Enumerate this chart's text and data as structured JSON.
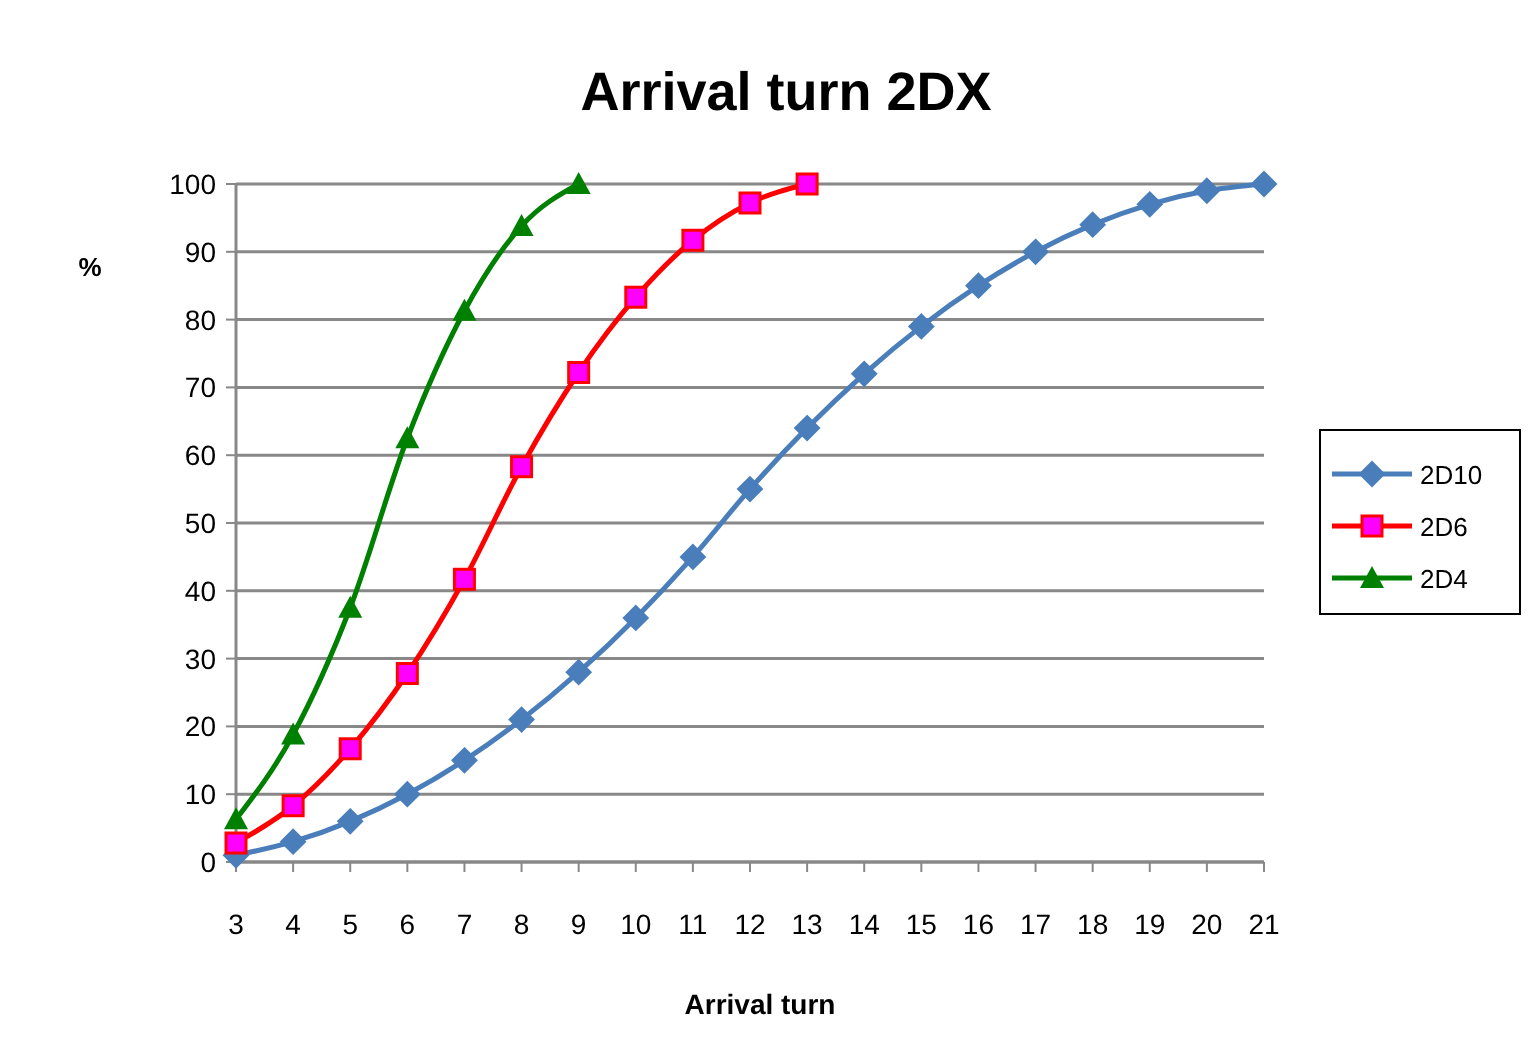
{
  "chart_data": {
    "type": "line",
    "title": "Arrival turn 2DX",
    "xlabel": "Arrival turn",
    "ylabel": "%",
    "xlim": [
      3,
      21
    ],
    "xticks": [
      3,
      4,
      5,
      6,
      7,
      8,
      9,
      10,
      11,
      12,
      13,
      14,
      15,
      16,
      17,
      18,
      19,
      20,
      21
    ],
    "ylim": [
      0,
      100
    ],
    "yticks": [
      0,
      10,
      20,
      30,
      40,
      50,
      60,
      70,
      80,
      90,
      100
    ],
    "grid": "y",
    "legend": "right",
    "series": [
      {
        "name": "2D10",
        "color": "#4a7ebb",
        "marker": "diamond",
        "x": [
          3,
          4,
          5,
          6,
          7,
          8,
          9,
          10,
          11,
          12,
          13,
          14,
          15,
          16,
          17,
          18,
          19,
          20,
          21
        ],
        "values": [
          1,
          3,
          6,
          10,
          15,
          21,
          28,
          36,
          45,
          55,
          64,
          72,
          79,
          85,
          90,
          94,
          97,
          99,
          100
        ]
      },
      {
        "name": "2D6",
        "color": "#ff0000",
        "marker": "square",
        "x": [
          3,
          4,
          5,
          6,
          7,
          8,
          9,
          10,
          11,
          12,
          13
        ],
        "values": [
          2.8,
          8.3,
          16.7,
          27.8,
          41.7,
          58.3,
          72.2,
          83.3,
          91.7,
          97.2,
          100
        ]
      },
      {
        "name": "2D4",
        "color": "#008000",
        "marker": "triangle",
        "x": [
          3,
          4,
          5,
          6,
          7,
          8,
          9
        ],
        "values": [
          6.3,
          18.8,
          37.5,
          62.5,
          81.3,
          93.8,
          100
        ]
      }
    ]
  }
}
